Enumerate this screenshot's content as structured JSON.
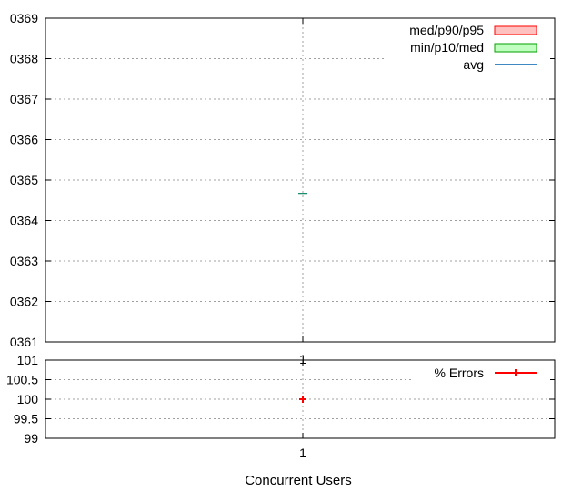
{
  "chart_data": [
    {
      "type": "box",
      "xlabel": "",
      "ylabel": "",
      "x_ticks": [
        "1"
      ],
      "y_ticks": [
        "0361",
        "0362",
        "0363",
        "0364",
        "0365",
        "0366",
        "0367",
        "0368",
        "0369"
      ],
      "ylim": [
        361,
        369
      ],
      "grid": true,
      "legend_placement": "top-right",
      "series": [
        {
          "name": "med/p90/p95",
          "color": "#ff0000",
          "fill": "#ffc0c0"
        },
        {
          "name": "min/p10/med",
          "color": "#00a000",
          "fill": "#c0ffc0"
        },
        {
          "name": "avg",
          "color": "#0060ad"
        }
      ],
      "points": [
        {
          "x": 1,
          "min": 364.67,
          "p10": 364.67,
          "med": 364.67,
          "p90": 364.67,
          "p95": 364.67,
          "avg": 364.67
        }
      ]
    },
    {
      "type": "scatter",
      "xlabel": "Concurrent Users",
      "ylabel": "",
      "x_ticks": [
        "1"
      ],
      "y_ticks": [
        "99",
        "99.5",
        "100",
        "100.5",
        "101"
      ],
      "ylim": [
        99,
        101
      ],
      "grid": true,
      "legend_placement": "top-right",
      "series": [
        {
          "name": "% Errors",
          "color": "#ff0000",
          "points": [
            {
              "x": 1,
              "y": 100
            }
          ]
        }
      ]
    }
  ]
}
